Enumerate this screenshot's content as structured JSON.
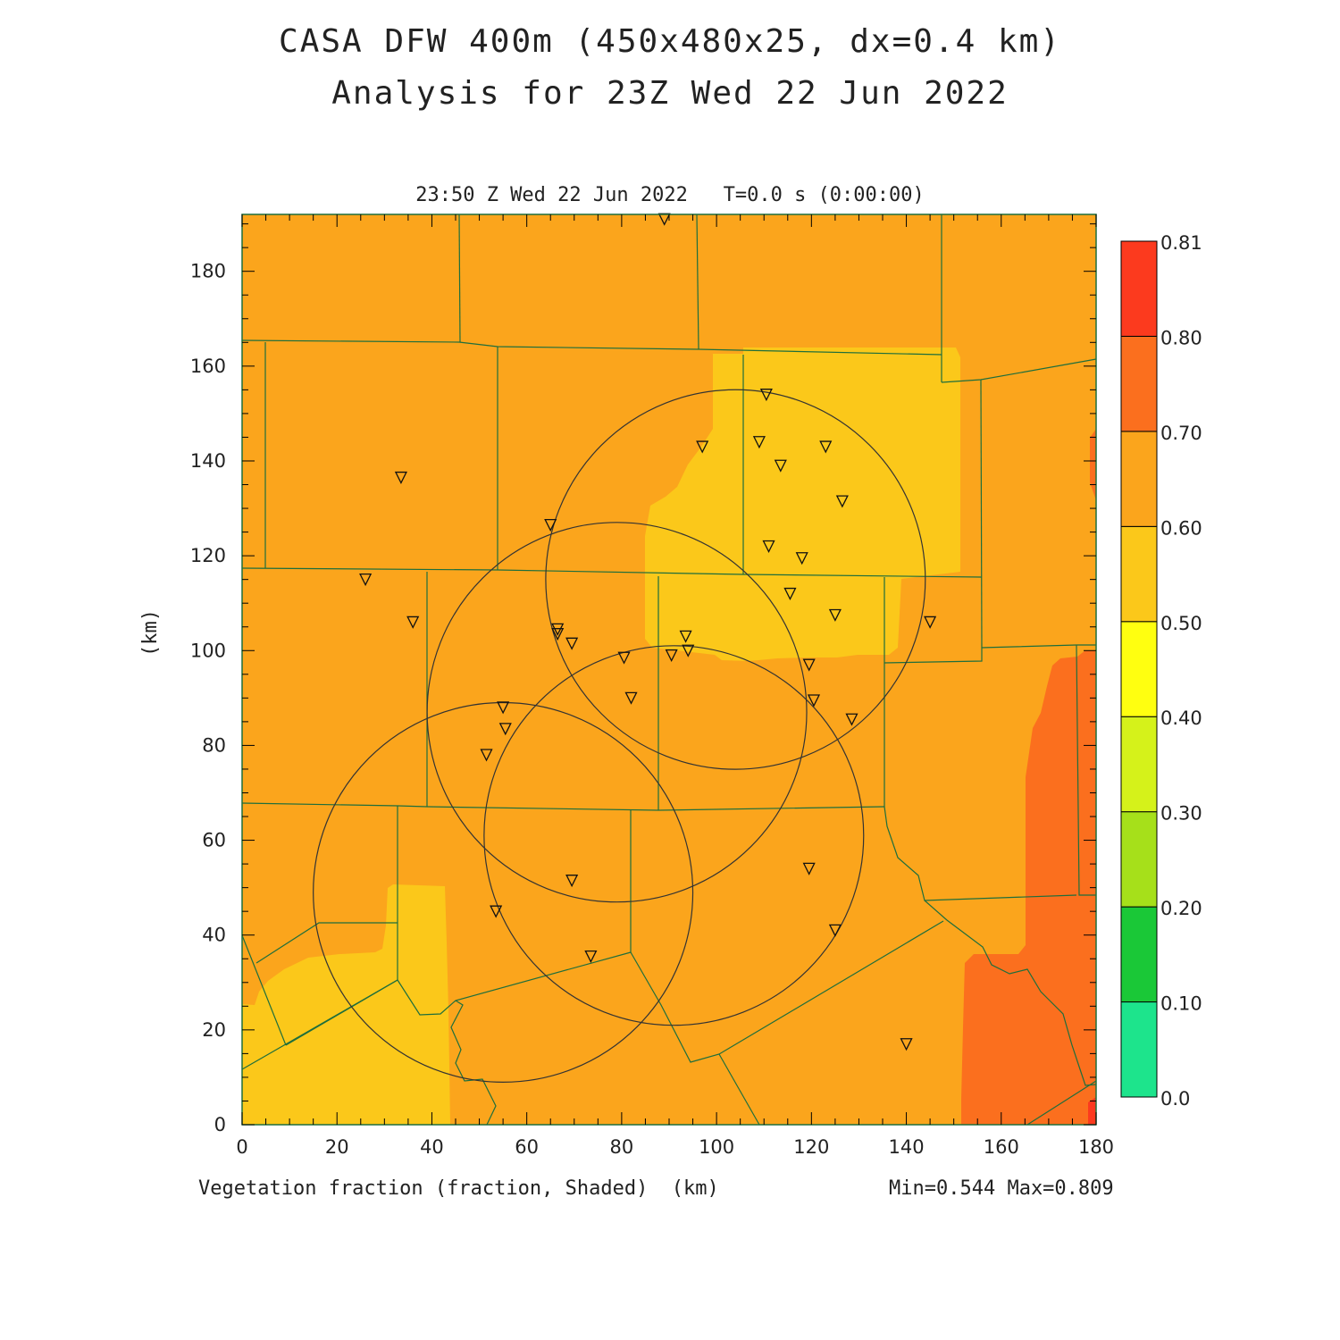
{
  "title_line1": "CASA DFW 400m (450x480x25, dx=0.4 km)",
  "title_line2": "Analysis for 23Z Wed 22 Jun 2022",
  "time_label": "23:50 Z Wed 22 Jun 2022   T=0.0 s (0:00:00)",
  "variable_label": "Vegetation fraction (fraction, Shaded)  (km)",
  "minmax_label": "Min=0.544 Max=0.809",
  "y_axis_label": "(km)",
  "x_ticks": [
    "0",
    "20",
    "40",
    "60",
    "80",
    "100",
    "120",
    "140",
    "160",
    "180"
  ],
  "y_ticks": [
    "0",
    "20",
    "40",
    "60",
    "80",
    "100",
    "120",
    "140",
    "160",
    "180"
  ],
  "colorbar": {
    "labels": [
      "0.0",
      "0.10",
      "0.20",
      "0.30",
      "0.40",
      "0.50",
      "0.60",
      "0.70",
      "0.80",
      "0.81"
    ],
    "colors": [
      "#1de48c",
      "#1ac837",
      "#a6e01a",
      "#d5f21a",
      "#ffff10",
      "#fbc81a",
      "#fba51c",
      "#fb6f1e",
      "#fc3a1e"
    ]
  },
  "colors": {
    "field_base": "#fba51c",
    "field_050_060": "#fbc81a",
    "field_070_080": "#fb6f1e",
    "field_080_plus": "#fc3a1e",
    "county_lines": "#1e6e3c",
    "circles": "#333333"
  },
  "chart_data": {
    "type": "map",
    "x_unit": "km",
    "y_unit": "km",
    "xlim": [
      0,
      180
    ],
    "ylim": [
      0,
      192
    ],
    "field": "Vegetation fraction",
    "min": 0.544,
    "max": 0.809,
    "radar_rings": [
      {
        "center_km": [
          104,
          115
        ],
        "radius_km": 40
      },
      {
        "center_km": [
          79,
          87
        ],
        "radius_km": 40
      },
      {
        "center_km": [
          91,
          61
        ],
        "radius_km": 40
      },
      {
        "center_km": [
          55,
          49
        ],
        "radius_km": 40
      }
    ],
    "stations_km": [
      [
        89,
        191
      ],
      [
        110.5,
        154
      ],
      [
        97,
        143
      ],
      [
        109,
        144
      ],
      [
        123,
        143
      ],
      [
        113.5,
        139
      ],
      [
        126.5,
        131.5
      ],
      [
        33.5,
        136.5
      ],
      [
        65,
        126.5
      ],
      [
        111,
        122
      ],
      [
        118,
        119.5
      ],
      [
        26,
        115
      ],
      [
        115.5,
        112
      ],
      [
        125,
        107.5
      ],
      [
        145,
        106
      ],
      [
        36,
        106
      ],
      [
        66.5,
        104.5
      ],
      [
        66.5,
        103.5
      ],
      [
        69.5,
        101.5
      ],
      [
        93.5,
        103
      ],
      [
        94,
        100
      ],
      [
        90.5,
        99
      ],
      [
        80.5,
        98.5
      ],
      [
        119.5,
        97
      ],
      [
        55,
        88
      ],
      [
        82,
        90
      ],
      [
        120.5,
        89.5
      ],
      [
        128.5,
        85.5
      ],
      [
        55.5,
        83.5
      ],
      [
        51.5,
        78
      ],
      [
        119.5,
        54
      ],
      [
        69.5,
        51.5
      ],
      [
        53.5,
        45
      ],
      [
        125,
        41
      ],
      [
        73.5,
        35.5
      ],
      [
        140,
        17
      ]
    ]
  }
}
